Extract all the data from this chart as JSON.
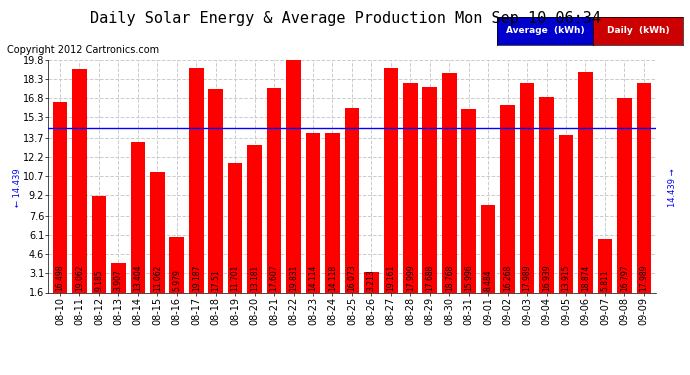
{
  "title": "Daily Solar Energy & Average Production Mon Sep 10 06:34",
  "copyright": "Copyright 2012 Cartronics.com",
  "categories": [
    "08-10",
    "08-11",
    "08-12",
    "08-13",
    "08-14",
    "08-15",
    "08-16",
    "08-17",
    "08-18",
    "08-19",
    "08-20",
    "08-21",
    "08-22",
    "08-23",
    "08-24",
    "08-25",
    "08-26",
    "08-27",
    "08-28",
    "08-29",
    "08-30",
    "08-31",
    "09-01",
    "09-02",
    "09-03",
    "09-04",
    "09-05",
    "09-06",
    "09-07",
    "09-08",
    "09-09"
  ],
  "values": [
    16.498,
    19.062,
    9.185,
    3.907,
    13.404,
    11.062,
    5.979,
    19.187,
    17.51,
    11.701,
    13.181,
    17.607,
    19.831,
    14.114,
    14.118,
    16.073,
    3.213,
    19.161,
    17.999,
    17.688,
    18.768,
    15.996,
    8.484,
    16.268,
    17.989,
    16.939,
    13.915,
    18.874,
    5.811,
    16.797,
    17.989
  ],
  "average": 14.439,
  "bar_color": "#FF0000",
  "average_line_color": "#0000FF",
  "yticks": [
    1.6,
    3.1,
    4.6,
    6.1,
    7.6,
    9.2,
    10.7,
    12.2,
    13.7,
    15.3,
    16.8,
    18.3,
    19.8
  ],
  "ymin": 1.6,
  "ymax": 19.8,
  "bg_color": "#FFFFFF",
  "grid_color": "#CCCCCC",
  "legend_average_bg": "#0000CD",
  "legend_daily_bg": "#CC0000",
  "average_label": "14.439",
  "title_fontsize": 11,
  "copyright_fontsize": 7,
  "bar_value_fontsize": 5.5,
  "axis_label_fontsize": 7
}
